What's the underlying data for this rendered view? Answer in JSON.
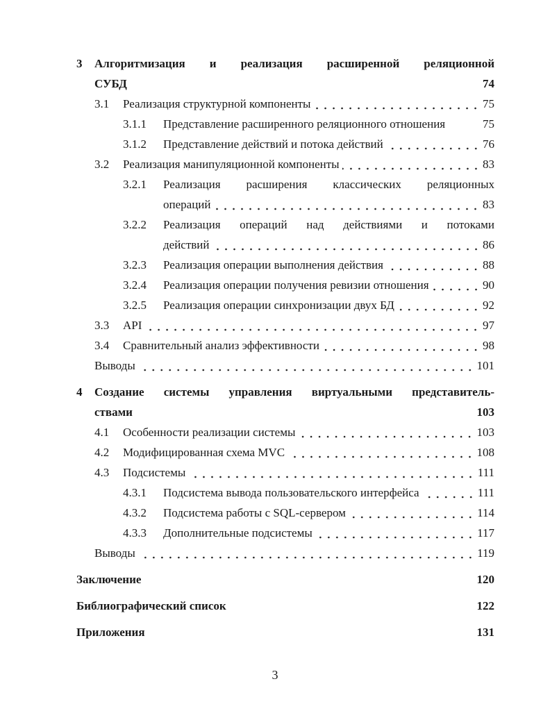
{
  "entries": [
    {
      "level": 0,
      "num": "3",
      "lines": [
        "Алгоритмизация и реализация расширенной реляционной",
        "СУБД"
      ],
      "page": "74"
    },
    {
      "level": 1,
      "num": "3.1",
      "lines": [
        "Реализация структурной компоненты"
      ],
      "page": "75"
    },
    {
      "level": 2,
      "num": "3.1.1",
      "lines": [
        "Представление расширенного реляционного отношения"
      ],
      "page": "75"
    },
    {
      "level": 2,
      "num": "3.1.2",
      "lines": [
        "Представление действий и потока действий"
      ],
      "page": "76"
    },
    {
      "level": 1,
      "num": "3.2",
      "lines": [
        "Реализация манипуляционной компоненты"
      ],
      "page": "83"
    },
    {
      "level": 2,
      "num": "3.2.1",
      "lines": [
        "Реализация расширения классических реляционных",
        "операций"
      ],
      "page": "83"
    },
    {
      "level": 2,
      "num": "3.2.2",
      "lines": [
        "Реализация операций над действиями и потоками",
        "действий"
      ],
      "page": "86"
    },
    {
      "level": 2,
      "num": "3.2.3",
      "lines": [
        "Реализация операции выполнения действия"
      ],
      "page": "88"
    },
    {
      "level": 2,
      "num": "3.2.4",
      "lines": [
        "Реализация операции получения ревизии отношения"
      ],
      "page": "90"
    },
    {
      "level": 2,
      "num": "3.2.5",
      "lines": [
        "Реализация операции синхронизации двух БД"
      ],
      "page": "92"
    },
    {
      "level": 1,
      "num": "3.3",
      "lines": [
        "API"
      ],
      "page": "97"
    },
    {
      "level": 1,
      "num": "3.4",
      "lines": [
        "Сравнительный анализ эффективности"
      ],
      "page": "98"
    },
    {
      "level": 1,
      "num": "",
      "lines": [
        "Выводы"
      ],
      "page": "101"
    },
    {
      "level": 0,
      "num": "4",
      "lines": [
        "Создание системы управления виртуальными представитель-",
        "ствами"
      ],
      "page": "103"
    },
    {
      "level": 1,
      "num": "4.1",
      "lines": [
        "Особенности реализации системы"
      ],
      "page": "103"
    },
    {
      "level": 1,
      "num": "4.2",
      "lines": [
        "Модифицированная схема MVC"
      ],
      "page": "108"
    },
    {
      "level": 1,
      "num": "4.3",
      "lines": [
        "Подсистемы"
      ],
      "page": "111"
    },
    {
      "level": 2,
      "num": "4.3.1",
      "lines": [
        "Подсистема вывода пользовательского интерфейса"
      ],
      "page": "111"
    },
    {
      "level": 2,
      "num": "4.3.2",
      "lines": [
        "Подсистема работы с SQL-сервером"
      ],
      "page": "114"
    },
    {
      "level": 2,
      "num": "4.3.3",
      "lines": [
        "Дополнительные подсистемы"
      ],
      "page": "117"
    },
    {
      "level": 1,
      "num": "",
      "lines": [
        "Выводы"
      ],
      "page": "119"
    },
    {
      "level": 0,
      "num": "",
      "lines": [
        "Заключение"
      ],
      "page": "120"
    },
    {
      "level": 0,
      "num": "",
      "lines": [
        "Библиографический список"
      ],
      "page": "122"
    },
    {
      "level": 0,
      "num": "",
      "lines": [
        "Приложения"
      ],
      "page": "131"
    }
  ],
  "page_number": "3"
}
